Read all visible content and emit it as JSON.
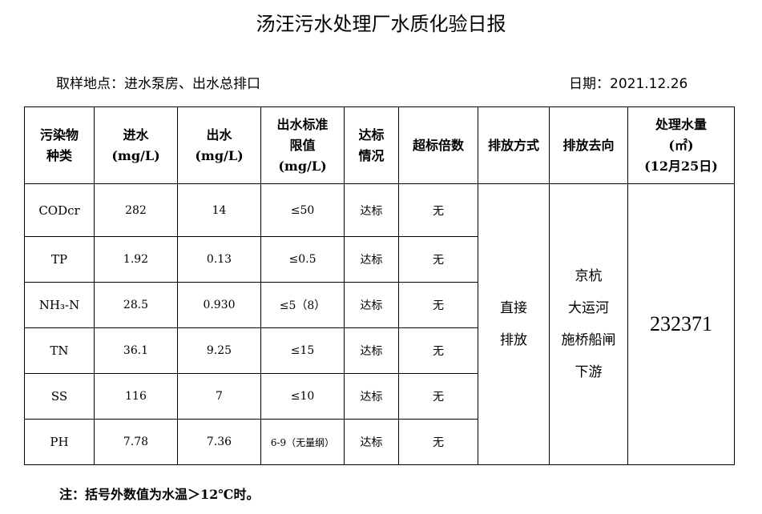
{
  "title": "汤汪污水处理厂水质化验日报",
  "sampling_location": "取样地点：进水泵房、出水总排口",
  "date": "日期：2021.12.26",
  "table": {
    "headers": [
      "污染物\n种类",
      "进水\n(mg/L)",
      "出水\n(mg/L)",
      "出水标准\n限值\n(mg/L)",
      "达标\n情况",
      "超标倍数",
      "排放方式",
      "排放去向",
      "处理水量\n(㎡)\n(12月25日)"
    ],
    "rows": [
      {
        "pollutant": "CODcr",
        "inflow": "282",
        "outflow": "14",
        "limit": "≤50",
        "status": "达标",
        "exceed": "无"
      },
      {
        "pollutant": "TP",
        "inflow": "1.92",
        "outflow": "0.13",
        "limit": "≤0.5",
        "status": "达标",
        "exceed": "无"
      },
      {
        "pollutant": "NH₃-N",
        "inflow": "28.5",
        "outflow": "0.930",
        "limit": "≤5（8）",
        "status": "达标",
        "exceed": "无"
      },
      {
        "pollutant": "TN",
        "inflow": "36.1",
        "outflow": "9.25",
        "limit": "≤15",
        "status": "达标",
        "exceed": "无"
      },
      {
        "pollutant": "SS",
        "inflow": "116",
        "outflow": "7",
        "limit": "≤10",
        "status": "达标",
        "exceed": "无"
      },
      {
        "pollutant": "PH",
        "inflow": "7.78",
        "outflow": "7.36",
        "limit": "6-9（无量纲）",
        "status": "达标",
        "exceed": "无"
      }
    ],
    "discharge_method": "直接\n排放",
    "discharge_destination": "京杭\n大运河\n施桥船闸\n下游",
    "treated_volume": "232371"
  },
  "note": "注：括号外数值为水温＞12℃时。"
}
